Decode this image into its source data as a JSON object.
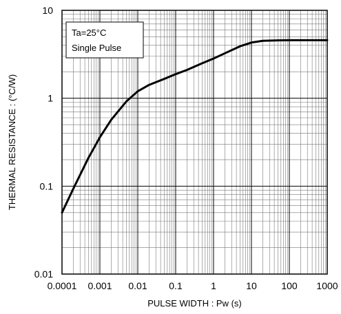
{
  "chart_data": {
    "type": "line",
    "xscale": "log",
    "yscale": "log",
    "xlim": [
      0.0001,
      1000
    ],
    "ylim": [
      0.01,
      10
    ],
    "xlabel": "PULSE WIDTH : Pw (s)",
    "ylabel": "THERMAL RESISTANCE :  (°C/W)",
    "x_tick_labels": [
      "0.0001",
      "0.001",
      "0.01",
      "0.1",
      "1",
      "10",
      "100",
      "1000"
    ],
    "y_tick_labels": [
      "0.01",
      "0.1",
      "1",
      "10"
    ],
    "grid": true,
    "annotation": {
      "line1": "Ta=25°C",
      "line2": "Single Pulse",
      "placement": "top-left"
    },
    "series": [
      {
        "x": [
          0.0001,
          0.0002,
          0.0005,
          0.001,
          0.002,
          0.005,
          0.01,
          0.02,
          0.05,
          0.1,
          0.2,
          0.5,
          1,
          2,
          5,
          10,
          20,
          50,
          100,
          200,
          500,
          1000
        ],
        "values": [
          0.05,
          0.094,
          0.21,
          0.36,
          0.57,
          0.92,
          1.2,
          1.42,
          1.66,
          1.88,
          2.1,
          2.5,
          2.83,
          3.25,
          3.9,
          4.3,
          4.5,
          4.55,
          4.57,
          4.57,
          4.57,
          4.57
        ]
      }
    ]
  }
}
